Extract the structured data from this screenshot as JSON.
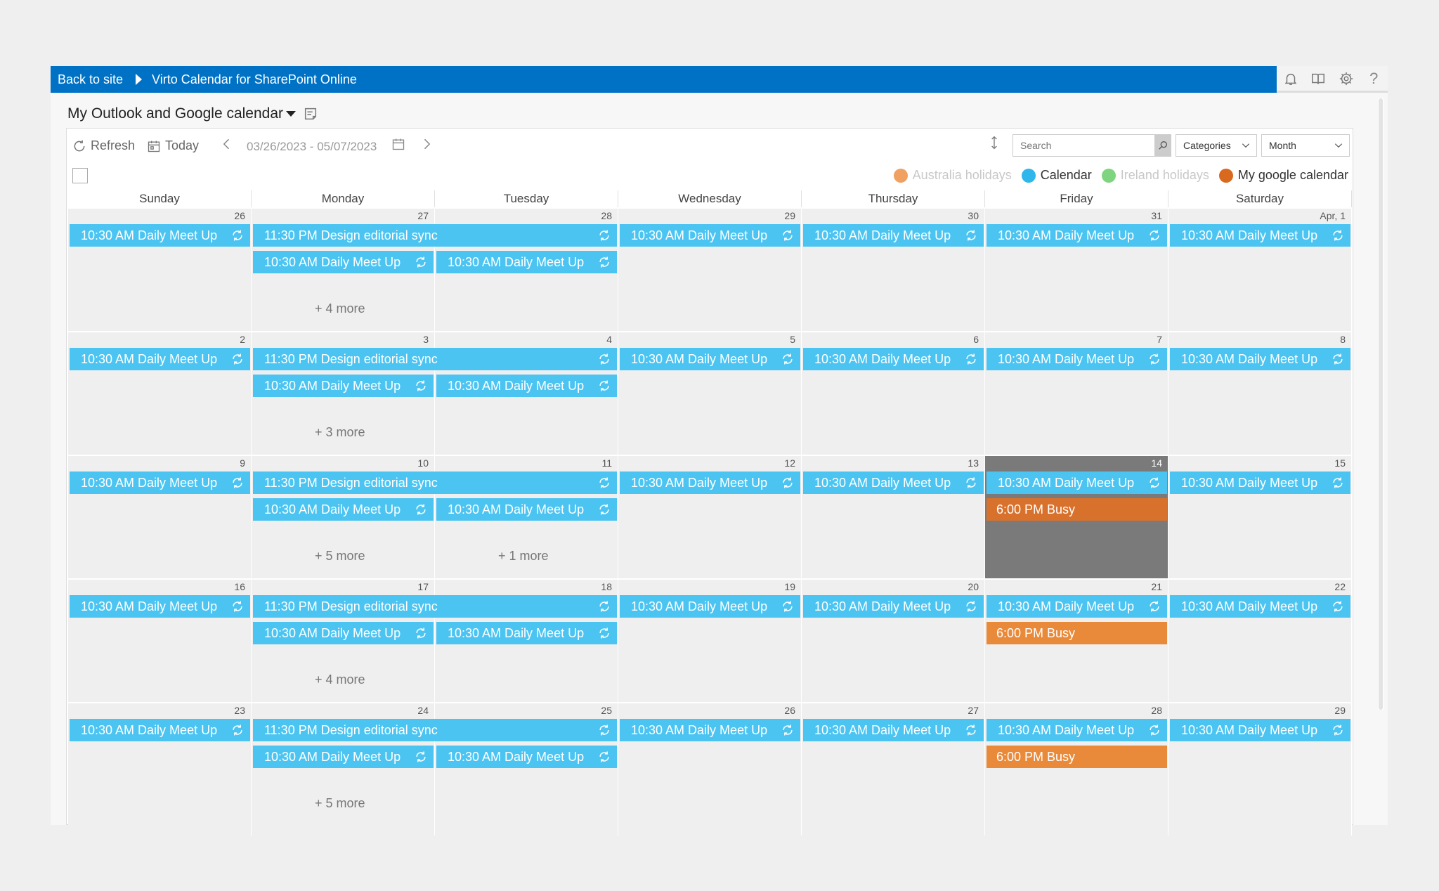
{
  "topbar": {
    "back_label": "Back to site",
    "breadcrumb_title": "Virto Calendar for SharePoint Online",
    "icons": [
      "bell-icon",
      "book-icon",
      "gear-icon",
      "help-icon"
    ]
  },
  "calendar_title": "My Outlook and Google calendar",
  "toolbar": {
    "refresh_label": "Refresh",
    "today_label": "Today",
    "date_range": "03/26/2023 - 05/07/2023",
    "search_placeholder": "Search",
    "categories_label": "Categories",
    "view_label": "Month"
  },
  "legend": [
    {
      "label": "Australia holidays",
      "color": "#f0a060",
      "active": false
    },
    {
      "label": "Calendar",
      "color": "#2fb6ea",
      "active": true
    },
    {
      "label": "Ireland holidays",
      "color": "#7fd47f",
      "active": false
    },
    {
      "label": "My google calendar",
      "color": "#d8691e",
      "active": true
    }
  ],
  "colors": {
    "primary_bar": "#0072c6",
    "event_blue": "#4bc4f2",
    "event_busy": "#e98a3a",
    "today_cell": "#7a7a7a"
  },
  "day_headers": [
    "Sunday",
    "Monday",
    "Tuesday",
    "Wednesday",
    "Thursday",
    "Friday",
    "Saturday"
  ],
  "weeks": [
    {
      "dates": [
        "26",
        "27",
        "28",
        "29",
        "30",
        "31",
        "Apr, 1"
      ],
      "daily": "10:30 AM Daily Meet Up",
      "editorial": "11:30 PM Design editorial sync",
      "more": [
        "+ 4 more",
        ""
      ],
      "busy": ""
    },
    {
      "dates": [
        "2",
        "3",
        "4",
        "5",
        "6",
        "7",
        "8"
      ],
      "daily": "10:30 AM Daily Meet Up",
      "editorial": "11:30 PM Design editorial sync",
      "more": [
        "+ 3 more",
        ""
      ],
      "busy": ""
    },
    {
      "dates": [
        "9",
        "10",
        "11",
        "12",
        "13",
        "14",
        "15"
      ],
      "daily": "10:30 AM Daily Meet Up",
      "editorial": "11:30 PM Design editorial sync",
      "more": [
        "+ 5 more",
        "+ 1 more"
      ],
      "busy": "6:00 PM Busy"
    },
    {
      "dates": [
        "16",
        "17",
        "18",
        "19",
        "20",
        "21",
        "22"
      ],
      "daily": "10:30 AM Daily Meet Up",
      "editorial": "11:30 PM Design editorial sync",
      "more": [
        "+ 4 more",
        ""
      ],
      "busy": "6:00 PM Busy"
    },
    {
      "dates": [
        "23",
        "24",
        "25",
        "26",
        "27",
        "28",
        "29"
      ],
      "daily": "10:30 AM Daily Meet Up",
      "editorial": "11:30 PM Design editorial sync",
      "more": [
        "+ 5 more",
        ""
      ],
      "busy": "6:00 PM Busy"
    }
  ]
}
